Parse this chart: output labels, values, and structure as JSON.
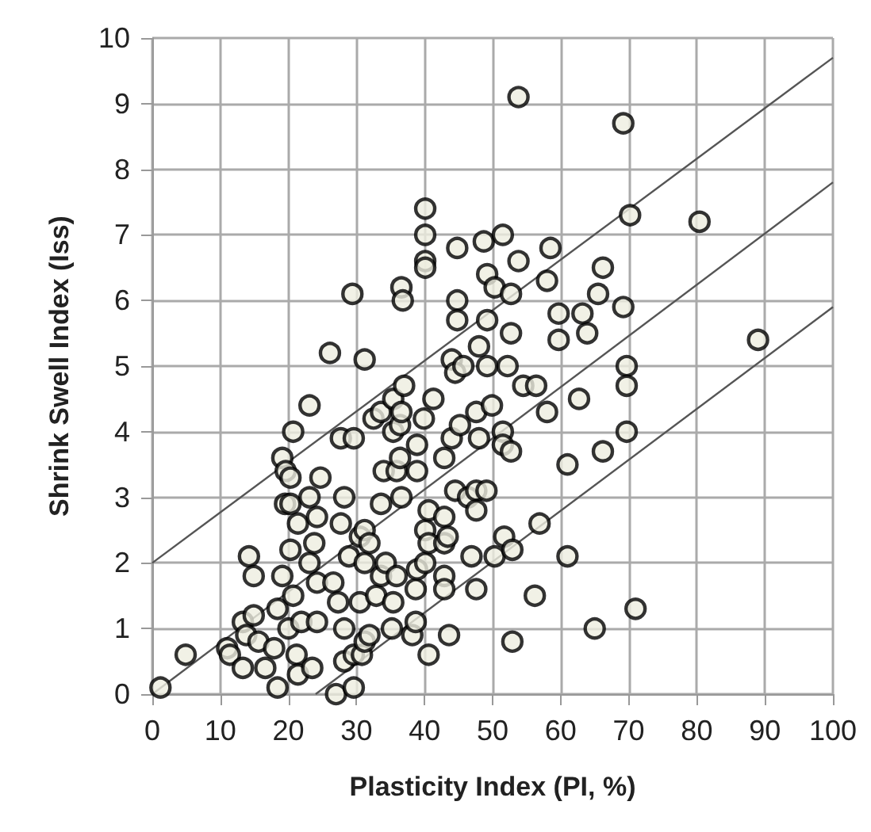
{
  "chart_data": {
    "type": "scatter",
    "xlabel": "Plasticity Index (PI, %)",
    "ylabel": "Shrink Swell Index (Iss)",
    "xlim": [
      0,
      100
    ],
    "xticks": [
      0,
      10,
      20,
      30,
      40,
      50,
      60,
      70,
      80,
      90,
      100
    ],
    "ylim": [
      0,
      10
    ],
    "yticks": [
      0,
      1,
      2,
      3,
      4,
      5,
      6,
      7,
      8,
      9,
      10
    ],
    "grid": true,
    "marker": "circle",
    "series": [
      {
        "color": "#eeede0",
        "x": [
          1.2,
          4.9,
          11,
          11.4,
          13.3,
          13.3,
          13.8,
          14.2,
          14.9,
          14.9,
          15.6,
          16.6,
          17.9,
          18.4,
          18.4,
          19.1,
          19.6,
          20.3,
          19.5,
          20.3,
          19.1,
          20,
          20.3,
          20.7,
          20.7,
          21.2,
          21.4,
          21.4,
          21.9,
          23.1,
          23.1,
          23.1,
          23.5,
          23.8,
          24.2,
          24.2,
          24.2,
          24.7,
          26.1,
          26.6,
          27,
          27.3,
          27.7,
          27.7,
          28.2,
          28.2,
          28.2,
          28.9,
          29.4,
          29.6,
          29.6,
          29.6,
          30.5,
          30.5,
          30.8,
          31.2,
          31.2,
          31.2,
          31.2,
          31.9,
          31.9,
          32.5,
          32.9,
          33.6,
          33.6,
          33.6,
          34,
          34.3,
          35.2,
          35.4,
          35.4,
          35.4,
          35.9,
          35.9,
          36.4,
          36.4,
          36.6,
          36.6,
          36.6,
          36.8,
          37,
          38.2,
          38.7,
          38.7,
          38.9,
          38.9,
          38.9,
          39.9,
          40.1,
          40.1,
          40.1,
          40.1,
          40.1,
          40.1,
          40.6,
          40.6,
          40.6,
          41.3,
          42.9,
          42.9,
          42.9,
          42.9,
          42.9,
          43.4,
          43.6,
          44,
          44,
          44.5,
          44.5,
          44.8,
          44.8,
          44.8,
          45.2,
          45.7,
          46.4,
          46.9,
          47.6,
          47.6,
          47.6,
          47.6,
          48,
          48,
          48.7,
          49.1,
          49.2,
          49.2,
          49.2,
          49.9,
          50.3,
          50.3,
          51.5,
          51.5,
          51.5,
          51.7,
          52.2,
          52.7,
          52.7,
          52.7,
          52.9,
          52.9,
          53.8,
          53.8,
          54.5,
          56.2,
          56.4,
          56.9,
          58,
          58,
          58.5,
          59.7,
          59.7,
          61,
          61,
          62.7,
          63.2,
          63.9,
          65,
          65.5,
          66.2,
          66.2,
          69.2,
          69.2,
          69.7,
          69.7,
          69.7,
          70.2,
          71,
          80.4,
          89
        ],
        "values": [
          0.1,
          0.6,
          0.7,
          0.6,
          1.1,
          0.4,
          0.9,
          2.1,
          1.8,
          1.2,
          0.8,
          0.4,
          0.7,
          1.3,
          0.1,
          3.6,
          3.4,
          3.3,
          2.9,
          2.9,
          1.8,
          1.0,
          2.2,
          4.0,
          1.5,
          0.6,
          2.6,
          0.3,
          1.1,
          4.4,
          3.0,
          2.0,
          0.4,
          2.3,
          2.7,
          1.7,
          1.1,
          3.3,
          5.2,
          1.7,
          0.0,
          1.4,
          3.9,
          2.6,
          3.0,
          1.0,
          0.5,
          2.1,
          6.1,
          3.9,
          0.6,
          0.1,
          2.4,
          1.4,
          0.6,
          5.1,
          2.5,
          2.0,
          0.8,
          2.3,
          0.9,
          4.2,
          1.5,
          4.3,
          2.9,
          1.8,
          3.4,
          2.0,
          1.0,
          4.5,
          4.0,
          1.4,
          3.4,
          1.8,
          4.1,
          3.6,
          6.2,
          4.3,
          3.0,
          6.0,
          4.7,
          0.9,
          1.6,
          1.1,
          3.8,
          3.4,
          1.9,
          4.2,
          7.4,
          7.0,
          6.6,
          6.5,
          2.5,
          2.0,
          2.8,
          2.3,
          0.6,
          4.5,
          3.6,
          2.7,
          2.3,
          1.8,
          1.6,
          2.4,
          0.9,
          5.1,
          3.9,
          4.9,
          3.1,
          6.8,
          6.0,
          5.7,
          4.1,
          5.0,
          3.0,
          2.1,
          4.3,
          3.1,
          2.8,
          1.6,
          5.3,
          3.9,
          6.9,
          3.1,
          6.4,
          5.7,
          5.0,
          4.4,
          6.2,
          2.1,
          7.0,
          4.0,
          3.8,
          2.4,
          5.0,
          6.1,
          3.7,
          5.5,
          2.2,
          0.8,
          9.1,
          6.6,
          4.7,
          1.5,
          4.7,
          2.6,
          6.3,
          4.3,
          6.8,
          5.8,
          5.4,
          3.5,
          2.1,
          4.5,
          5.8,
          5.5,
          1.0,
          6.1,
          6.5,
          3.7,
          8.7,
          5.9,
          5.0,
          4.7,
          4.0,
          7.3,
          1.3,
          7.2,
          5.4
        ]
      },
      {
        "type": "line",
        "color": "#555555",
        "marker": "none",
        "x": [
          0,
          100
        ],
        "values": [
          2,
          9.7
        ]
      },
      {
        "type": "line",
        "color": "#555555",
        "marker": "none",
        "x": [
          0,
          100
        ],
        "values": [
          0,
          7.8
        ]
      },
      {
        "type": "line",
        "color": "#555555",
        "marker": "none",
        "x": [
          24,
          100
        ],
        "values": [
          0,
          5.9
        ]
      }
    ]
  }
}
